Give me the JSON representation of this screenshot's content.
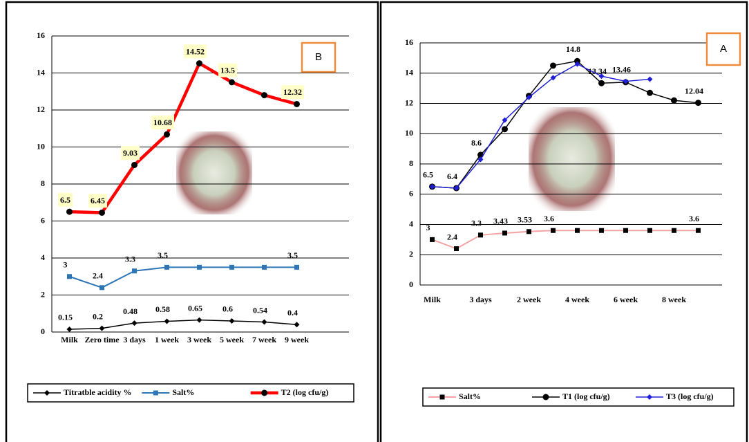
{
  "chart_data": [
    {
      "type": "line",
      "annotation": "B",
      "categories": [
        "Milk",
        "Zero time",
        "3 days",
        "1 week",
        "3 week",
        "5 week",
        "7 week",
        "9 week"
      ],
      "ylim": [
        0,
        16
      ],
      "yticks": [
        0,
        2,
        4,
        6,
        8,
        10,
        12,
        14,
        16
      ],
      "grid": true,
      "legend": "bottom",
      "series": [
        {
          "name": "Titratble acidity %",
          "color": "#000000",
          "marker": "diamond",
          "marker_color": "#000000",
          "values": [
            0.15,
            0.2,
            0.48,
            0.58,
            0.65,
            0.6,
            0.54,
            0.4
          ],
          "value_labels": [
            "0.15",
            "0.2",
            "0.48",
            "0.58",
            "0.65",
            "0.6",
            "0.54",
            "0.4"
          ]
        },
        {
          "name": "Salt%",
          "color": "#2e75b6",
          "marker": "square",
          "marker_color": "#2e75b6",
          "values": [
            3,
            2.4,
            3.3,
            3.5,
            3.5,
            3.5,
            3.5,
            3.5
          ],
          "value_labels": [
            "3",
            "2.4",
            "3.3",
            "3.5",
            null,
            null,
            null,
            "3.5"
          ]
        },
        {
          "name": "T2 (log cfu/g)",
          "color": "#ff0000",
          "marker": "circle",
          "marker_color": "#000000",
          "label_background": "#ffffc8",
          "values": [
            6.5,
            6.45,
            9.03,
            10.68,
            14.52,
            13.5,
            12.8,
            12.32
          ],
          "value_labels": [
            "6.5",
            "6.45",
            "9.03",
            "10.68",
            "14.52",
            "13.5",
            null,
            "12.32"
          ]
        }
      ]
    },
    {
      "type": "line",
      "annotation": "A",
      "categories": [
        "Milk",
        null,
        "3 days",
        null,
        "2 week",
        null,
        "4 week",
        null,
        "6 week",
        null,
        "8 week",
        null
      ],
      "ylim": [
        0,
        16
      ],
      "yticks": [
        0,
        2,
        4,
        6,
        8,
        10,
        12,
        14,
        16
      ],
      "grid": true,
      "legend": "bottom",
      "series": [
        {
          "name": "Salt%",
          "color": "#f4a3a3",
          "marker": "square",
          "marker_color": "#000000",
          "values": [
            3,
            2.4,
            3.3,
            3.43,
            3.53,
            3.6,
            3.6,
            3.6,
            3.6,
            3.6,
            3.6,
            3.6
          ],
          "value_labels": [
            "3",
            "2.4",
            "3.3",
            "3.43",
            "3.53",
            "3.6",
            null,
            null,
            null,
            null,
            null,
            "3.6"
          ]
        },
        {
          "name": "T1 (log cfu/g)",
          "color": "#000000",
          "marker": "circle",
          "marker_color": "#000000",
          "values": [
            6.5,
            6.4,
            8.6,
            10.3,
            12.5,
            14.5,
            14.8,
            13.34,
            13.4,
            12.7,
            12.2,
            12.04
          ],
          "value_labels": [
            "6.5",
            "6.4",
            "8.6",
            null,
            null,
            null,
            "14.8",
            "13.34",
            null,
            null,
            null,
            "12.04"
          ]
        },
        {
          "name": "T3 (log cfu/g)",
          "color": "#1f1fd6",
          "marker": "diamond",
          "marker_color": "#1f1fd6",
          "values": [
            6.5,
            6.4,
            8.3,
            10.9,
            12.4,
            13.7,
            14.6,
            13.8,
            13.46,
            13.6,
            null,
            null
          ],
          "value_labels": [
            null,
            null,
            null,
            null,
            null,
            null,
            null,
            null,
            "13.46",
            null,
            null,
            null
          ]
        }
      ]
    }
  ]
}
